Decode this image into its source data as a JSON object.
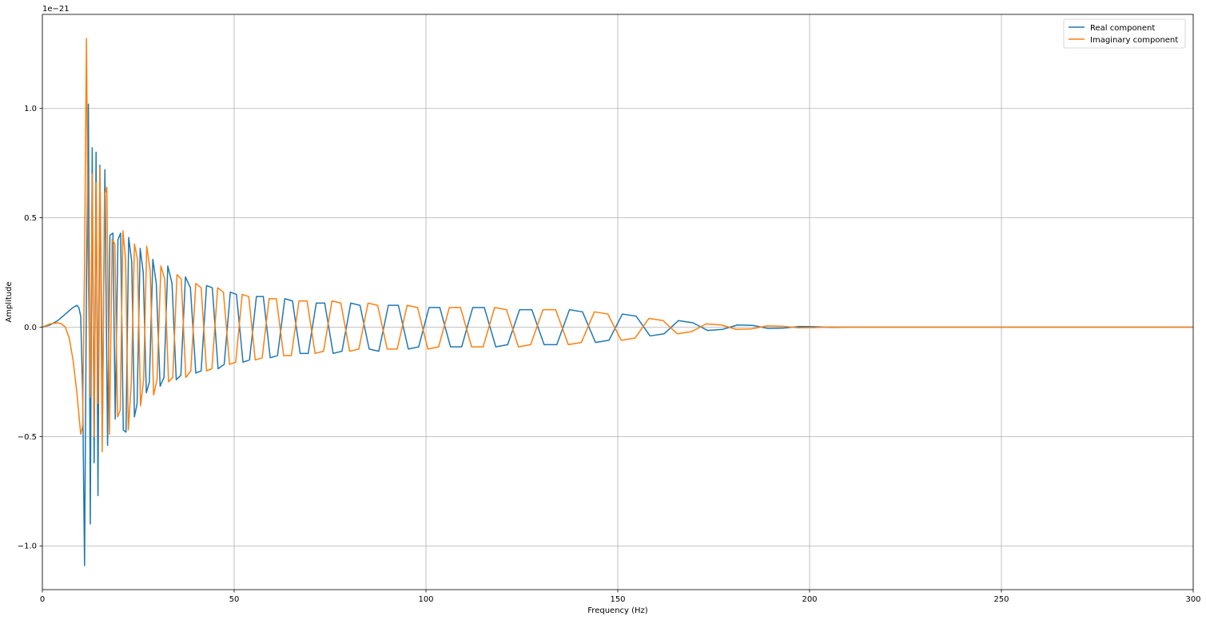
{
  "chart_data": {
    "type": "line",
    "title": "",
    "xlabel": "Frequency (Hz)",
    "ylabel": "Amplitude",
    "y_offset_label": "1e−21",
    "xlim": [
      0,
      300
    ],
    "ylim": [
      -1.2,
      1.43
    ],
    "x_ticks": [
      0,
      50,
      100,
      150,
      200,
      250,
      300
    ],
    "x_tick_labels": [
      "0",
      "50",
      "100",
      "150",
      "200",
      "250",
      "300"
    ],
    "y_ticks": [
      -1.0,
      -0.5,
      0.0,
      0.5,
      1.0
    ],
    "y_tick_labels": [
      "−1.0",
      "−0.5",
      "0.0",
      "0.5",
      "1.0"
    ],
    "grid": true,
    "legend_position": "top-right",
    "series": [
      {
        "name": "Real component",
        "color": "#1f77b4",
        "points": [
          [
            0,
            0
          ],
          [
            2,
            0.01
          ],
          [
            4,
            0.03
          ],
          [
            6,
            0.06
          ],
          [
            8,
            0.09
          ],
          [
            9,
            0.1
          ],
          [
            9.5,
            0.09
          ],
          [
            10,
            0.05
          ],
          [
            10.5,
            -0.3
          ],
          [
            11,
            -1.09
          ],
          [
            11.5,
            0.2
          ],
          [
            12,
            1.02
          ],
          [
            12.5,
            -0.9
          ],
          [
            13,
            0.82
          ],
          [
            13.5,
            -0.62
          ],
          [
            14,
            0.8
          ],
          [
            14.5,
            -0.77
          ],
          [
            15,
            0.74
          ],
          [
            15.7,
            -0.4
          ],
          [
            16.3,
            0.72
          ],
          [
            17,
            -0.54
          ],
          [
            17.6,
            0.42
          ],
          [
            18.4,
            0.43
          ],
          [
            19,
            -0.42
          ],
          [
            19.7,
            0.4
          ],
          [
            20.4,
            0.43
          ],
          [
            21.1,
            -0.47
          ],
          [
            21.8,
            -0.48
          ],
          [
            22.5,
            0.41
          ],
          [
            23.3,
            0.3
          ],
          [
            24,
            -0.41
          ],
          [
            24.7,
            -0.35
          ],
          [
            25.5,
            0.36
          ],
          [
            26.3,
            0.25
          ],
          [
            27.1,
            -0.3
          ],
          [
            27.9,
            -0.25
          ],
          [
            28.8,
            0.31
          ],
          [
            29.7,
            0.2
          ],
          [
            30.7,
            -0.27
          ],
          [
            31.7,
            -0.23
          ],
          [
            32.7,
            0.28
          ],
          [
            33.8,
            0.2
          ],
          [
            34.9,
            -0.24
          ],
          [
            36.1,
            -0.22
          ],
          [
            37.3,
            0.23
          ],
          [
            38.6,
            0.18
          ],
          [
            40,
            -0.21
          ],
          [
            41.4,
            -0.2
          ],
          [
            42.8,
            0.19
          ],
          [
            44.3,
            0.18
          ],
          [
            45.8,
            -0.19
          ],
          [
            47.4,
            -0.17
          ],
          [
            49,
            0.16
          ],
          [
            50.6,
            0.15
          ],
          [
            52.3,
            -0.16
          ],
          [
            54,
            -0.15
          ],
          [
            55.8,
            0.14
          ],
          [
            57.6,
            0.14
          ],
          [
            59.4,
            -0.14
          ],
          [
            61.3,
            -0.13
          ],
          [
            63.2,
            0.13
          ],
          [
            65.2,
            0.12
          ],
          [
            67.2,
            -0.12
          ],
          [
            69.3,
            -0.12
          ],
          [
            71.4,
            0.11
          ],
          [
            73.6,
            0.11
          ],
          [
            75.8,
            -0.12
          ],
          [
            78.1,
            -0.11
          ],
          [
            80.4,
            0.11
          ],
          [
            82.8,
            0.1
          ],
          [
            85.2,
            -0.1
          ],
          [
            87.7,
            -0.11
          ],
          [
            90.2,
            0.1
          ],
          [
            92.8,
            0.1
          ],
          [
            95.4,
            -0.1
          ],
          [
            98.1,
            -0.09
          ],
          [
            100.8,
            0.09
          ],
          [
            103.6,
            0.09
          ],
          [
            106.4,
            -0.09
          ],
          [
            109.3,
            -0.09
          ],
          [
            112.2,
            0.09
          ],
          [
            115.2,
            0.09
          ],
          [
            118.2,
            -0.09
          ],
          [
            121.3,
            -0.08
          ],
          [
            124.4,
            0.08
          ],
          [
            127.6,
            0.08
          ],
          [
            130.8,
            -0.08
          ],
          [
            134.1,
            -0.08
          ],
          [
            137.4,
            0.08
          ],
          [
            140.8,
            0.07
          ],
          [
            144.2,
            -0.07
          ],
          [
            147.7,
            -0.06
          ],
          [
            151.2,
            0.06
          ],
          [
            154.8,
            0.05
          ],
          [
            158.4,
            -0.04
          ],
          [
            162.1,
            -0.03
          ],
          [
            165.8,
            0.03
          ],
          [
            169.6,
            0.02
          ],
          [
            173.4,
            -0.015
          ],
          [
            177.3,
            -0.01
          ],
          [
            181.2,
            0.01
          ],
          [
            185.2,
            0.008
          ],
          [
            189.2,
            -0.006
          ],
          [
            193.3,
            -0.004
          ],
          [
            197.4,
            0.003
          ],
          [
            201.6,
            0.002
          ],
          [
            205.8,
            -0.001
          ],
          [
            210,
            0
          ],
          [
            300,
            0
          ]
        ]
      },
      {
        "name": "Imaginary component",
        "color": "#ff7f0e",
        "points": [
          [
            0,
            0
          ],
          [
            2,
            0.015
          ],
          [
            4,
            0.02
          ],
          [
            5,
            0.015
          ],
          [
            6,
            0
          ],
          [
            7,
            -0.05
          ],
          [
            8,
            -0.15
          ],
          [
            9,
            -0.3
          ],
          [
            10,
            -0.49
          ],
          [
            10.5,
            -0.45
          ],
          [
            11,
            0.3
          ],
          [
            11.5,
            1.32
          ],
          [
            12,
            0.2
          ],
          [
            12.5,
            -0.32
          ],
          [
            13,
            0.7
          ],
          [
            13.5,
            -0.5
          ],
          [
            14,
            0.66
          ],
          [
            14.5,
            -0.35
          ],
          [
            15,
            0.73
          ],
          [
            15.6,
            -0.57
          ],
          [
            16.2,
            0.6
          ],
          [
            16.8,
            0.64
          ],
          [
            17.5,
            -0.49
          ],
          [
            18.2,
            0.4
          ],
          [
            18.9,
            0.38
          ],
          [
            19.6,
            -0.41
          ],
          [
            20.3,
            -0.38
          ],
          [
            21,
            0.44
          ],
          [
            21.7,
            0.31
          ],
          [
            22.4,
            -0.47
          ],
          [
            23.2,
            -0.25
          ],
          [
            24,
            0.38
          ],
          [
            24.8,
            0.31
          ],
          [
            25.6,
            -0.36
          ],
          [
            26.4,
            -0.24
          ],
          [
            27.2,
            0.37
          ],
          [
            28.1,
            0.26
          ],
          [
            29,
            -0.31
          ],
          [
            29.9,
            -0.24
          ],
          [
            30.9,
            0.28
          ],
          [
            31.9,
            0.22
          ],
          [
            32.9,
            -0.25
          ],
          [
            34,
            -0.23
          ],
          [
            35.1,
            0.24
          ],
          [
            36.2,
            0.22
          ],
          [
            37.4,
            -0.23
          ],
          [
            38.7,
            -0.2
          ],
          [
            40,
            0.2
          ],
          [
            41.4,
            0.18
          ],
          [
            42.8,
            -0.2
          ],
          [
            44.2,
            -0.19
          ],
          [
            45.7,
            0.18
          ],
          [
            47.2,
            0.16
          ],
          [
            48.8,
            -0.17
          ],
          [
            50.4,
            -0.16
          ],
          [
            52.1,
            0.15
          ],
          [
            53.8,
            0.14
          ],
          [
            55.5,
            -0.15
          ],
          [
            57.3,
            -0.14
          ],
          [
            59.1,
            0.13
          ],
          [
            61,
            0.13
          ],
          [
            62.9,
            -0.13
          ],
          [
            64.9,
            -0.13
          ],
          [
            66.9,
            0.12
          ],
          [
            69,
            0.12
          ],
          [
            71.1,
            -0.12
          ],
          [
            73.3,
            -0.11
          ],
          [
            75.5,
            0.12
          ],
          [
            77.8,
            0.11
          ],
          [
            80.1,
            -0.11
          ],
          [
            82.5,
            -0.1
          ],
          [
            84.9,
            0.11
          ],
          [
            87.4,
            0.1
          ],
          [
            89.9,
            -0.1
          ],
          [
            92.5,
            -0.1
          ],
          [
            95.1,
            0.1
          ],
          [
            97.8,
            0.09
          ],
          [
            100.5,
            -0.1
          ],
          [
            103.3,
            -0.09
          ],
          [
            106.1,
            0.09
          ],
          [
            109,
            0.09
          ],
          [
            111.9,
            -0.09
          ],
          [
            114.9,
            -0.09
          ],
          [
            117.9,
            0.09
          ],
          [
            121,
            0.08
          ],
          [
            124.1,
            -0.09
          ],
          [
            127.3,
            -0.08
          ],
          [
            130.5,
            0.08
          ],
          [
            133.8,
            0.08
          ],
          [
            137.1,
            -0.08
          ],
          [
            140.5,
            -0.07
          ],
          [
            143.9,
            0.07
          ],
          [
            147.4,
            0.06
          ],
          [
            150.9,
            -0.06
          ],
          [
            154.5,
            -0.05
          ],
          [
            158.1,
            0.04
          ],
          [
            161.8,
            0.03
          ],
          [
            165.5,
            -0.03
          ],
          [
            169.3,
            -0.02
          ],
          [
            173.1,
            0.015
          ],
          [
            177,
            0.01
          ],
          [
            180.9,
            -0.01
          ],
          [
            184.9,
            -0.008
          ],
          [
            188.9,
            0.006
          ],
          [
            193,
            0.004
          ],
          [
            197.1,
            -0.003
          ],
          [
            201.3,
            -0.002
          ],
          [
            205.5,
            0.001
          ],
          [
            210,
            0
          ],
          [
            300,
            0
          ]
        ]
      }
    ]
  }
}
